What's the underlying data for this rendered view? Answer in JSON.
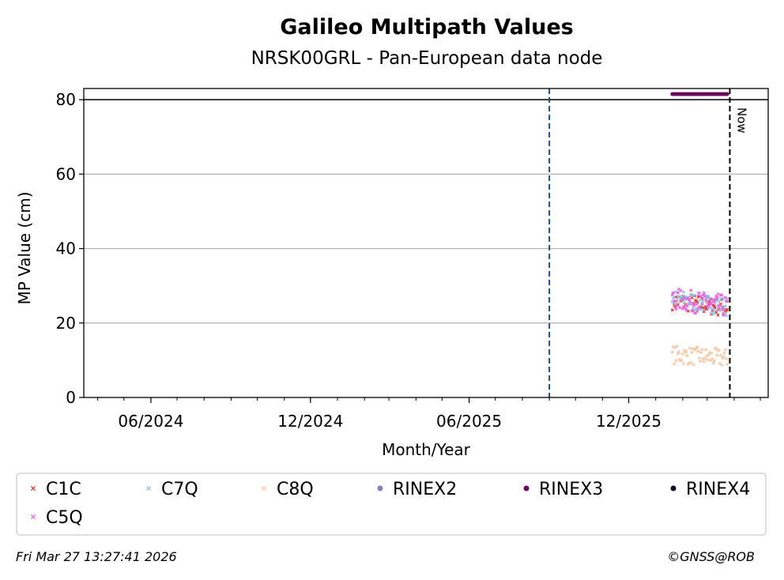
{
  "chart_data": {
    "type": "scatter",
    "title": "Galileo Multipath Values",
    "subtitle": "NRSK00GRL - Pan-European data node",
    "xlabel": "Month/Year",
    "ylabel": "MP Value (cm)",
    "ylim": [
      0,
      83
    ],
    "xlim": [
      "2024-03-16",
      "2026-05-10"
    ],
    "x_ticks": [
      {
        "date": "2024-06-01",
        "label": "06/2024"
      },
      {
        "date": "2024-12-01",
        "label": "12/2024"
      },
      {
        "date": "2025-06-01",
        "label": "06/2025"
      },
      {
        "date": "2025-12-01",
        "label": "12/2025"
      }
    ],
    "y_ticks": [
      0,
      20,
      40,
      60,
      80
    ],
    "grid": "y",
    "reference_line": {
      "y": 80,
      "color": "#000000"
    },
    "markers": [
      {
        "date": "2025-09-01",
        "color": "#1f4e8c",
        "style": "dashed"
      },
      {
        "date": "2026-03-27",
        "color": "#000000",
        "style": "dashed",
        "label": "Now"
      }
    ],
    "legend_position": "bottom",
    "series": [
      {
        "name": "C1C",
        "color": "#e8312a",
        "marker": "x",
        "date_range": [
          "2026-01-20",
          "2026-03-24"
        ],
        "y_start": 26,
        "y_end": 24,
        "y_spread": 2.5
      },
      {
        "name": "C7Q",
        "color": "#8fc3e8",
        "marker": "x",
        "date_range": [
          "2026-01-20",
          "2026-03-24"
        ],
        "y_start": 26.5,
        "y_end": 24.5,
        "y_spread": 2.5
      },
      {
        "name": "C8Q",
        "color": "#f5c7a3",
        "marker": "x",
        "date_range": [
          "2026-01-20",
          "2026-03-24"
        ],
        "y_start": 11.5,
        "y_end": 10.5,
        "y_spread": 2.5
      },
      {
        "name": "RINEX2",
        "color": "#8a7bc0",
        "marker": "dot"
      },
      {
        "name": "RINEX3",
        "color": "#6a0a5e",
        "marker": "dot",
        "date_range": [
          "2026-01-20",
          "2026-03-24"
        ],
        "y_start": 81.5,
        "y_end": 81.5,
        "y_spread": 0
      },
      {
        "name": "RINEX4",
        "color": "#1a0a2e",
        "marker": "dot"
      },
      {
        "name": "C5Q",
        "color": "#f062e8",
        "marker": "x",
        "date_range": [
          "2026-01-20",
          "2026-03-24"
        ],
        "y_start": 26.5,
        "y_end": 24.5,
        "y_spread": 3
      }
    ]
  },
  "footer": {
    "timestamp": "Fri Mar 27 13:27:41 2026",
    "credit": "©GNSS@ROB"
  }
}
